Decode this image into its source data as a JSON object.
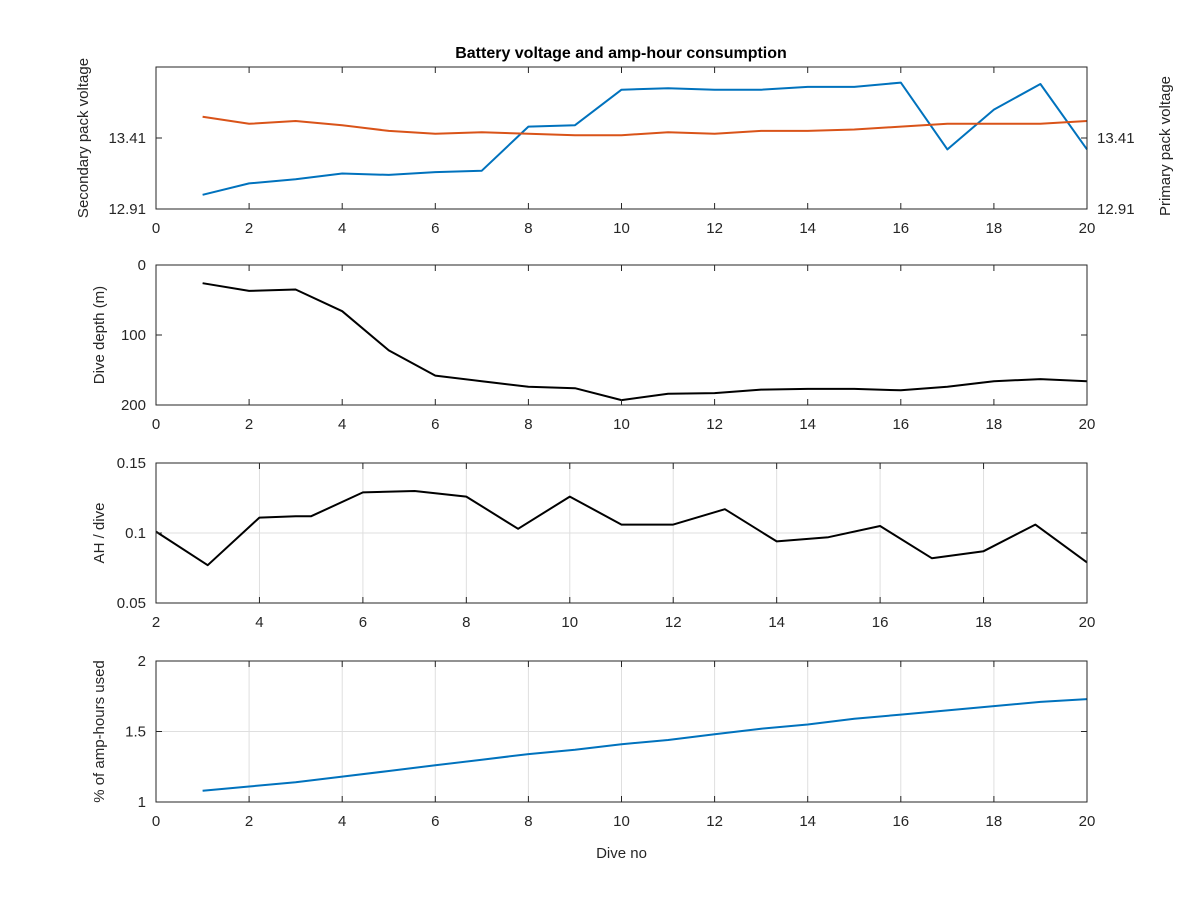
{
  "figure_title": "Battery voltage and amp-hour consumption",
  "colors": {
    "secondary": "#0072BD",
    "primary": "#D95319",
    "black": "#000000",
    "grid": "#DFDFDF",
    "axis": "#262626"
  },
  "chart_data": [
    {
      "type": "line",
      "title": "Battery voltage and amp-hour consumption",
      "xlabel": "",
      "xlim": [
        0,
        20
      ],
      "xticks": [
        0,
        2,
        4,
        6,
        8,
        10,
        12,
        14,
        16,
        18,
        20
      ],
      "grid": false,
      "ylabel_left": "Secondary pack voltage",
      "ylabel_right": "Primary pack voltage",
      "ylim_left": [
        12.91,
        13.91
      ],
      "ylim_right": [
        12.91,
        13.91
      ],
      "yticks_left": [
        12.91,
        13.41
      ],
      "yticks_right": [
        12.91,
        13.41
      ],
      "series": [
        {
          "name": "Secondary pack voltage",
          "axis": "left",
          "x": [
            1,
            2,
            3,
            4,
            5,
            6,
            7,
            8,
            9,
            10,
            11,
            12,
            13,
            14,
            15,
            16,
            17,
            18,
            19,
            20
          ],
          "values": [
            13.01,
            13.09,
            13.12,
            13.16,
            13.15,
            13.17,
            13.18,
            13.49,
            13.5,
            13.75,
            13.76,
            13.75,
            13.75,
            13.77,
            13.77,
            13.8,
            13.33,
            13.61,
            13.79,
            13.33
          ]
        },
        {
          "name": "Primary pack voltage",
          "axis": "right",
          "x": [
            1,
            2,
            3,
            4,
            5,
            6,
            7,
            8,
            9,
            10,
            11,
            12,
            13,
            14,
            15,
            16,
            17,
            18,
            19,
            20
          ],
          "values": [
            13.56,
            13.51,
            13.53,
            13.5,
            13.46,
            13.44,
            13.45,
            13.44,
            13.43,
            13.43,
            13.45,
            13.44,
            13.46,
            13.46,
            13.47,
            13.49,
            13.51,
            13.51,
            13.51,
            13.53
          ]
        }
      ]
    },
    {
      "type": "line",
      "title": "",
      "xlabel": "",
      "ylabel": "Dive depth (m)",
      "xlim": [
        0,
        20
      ],
      "xticks": [
        0,
        2,
        4,
        6,
        8,
        10,
        12,
        14,
        16,
        18,
        20
      ],
      "ylim": [
        0,
        200
      ],
      "yticks": [
        0,
        100,
        200
      ],
      "y_reversed": true,
      "grid": false,
      "series": [
        {
          "x": [
            1,
            2,
            3,
            4,
            5,
            6,
            7,
            8,
            9,
            10,
            11,
            12,
            13,
            14,
            15,
            16,
            17,
            18,
            19,
            20
          ],
          "values": [
            26,
            37,
            35,
            66,
            122,
            158,
            166,
            174,
            176,
            193,
            184,
            183,
            178,
            177,
            177,
            179,
            174,
            166,
            163,
            166
          ]
        }
      ]
    },
    {
      "type": "line",
      "title": "",
      "xlabel": "",
      "ylabel": "AH / dive",
      "xlim": [
        2,
        20
      ],
      "xticks": [
        2,
        4,
        6,
        8,
        10,
        12,
        14,
        16,
        18,
        20
      ],
      "ylim": [
        0.05,
        0.15
      ],
      "yticks": [
        0.05,
        0.1,
        0.15
      ],
      "grid": true,
      "series": [
        {
          "x": [
            2,
            3,
            4,
            4.7,
            5,
            6,
            7,
            8,
            9,
            10,
            11,
            12,
            13,
            14,
            15,
            16,
            17,
            18,
            19,
            20
          ],
          "values": [
            0.101,
            0.077,
            0.111,
            0.112,
            0.112,
            0.129,
            0.13,
            0.126,
            0.103,
            0.126,
            0.106,
            0.106,
            0.117,
            0.094,
            0.097,
            0.105,
            0.082,
            0.087,
            0.106,
            0.079
          ]
        }
      ]
    },
    {
      "type": "line",
      "title": "",
      "xlabel": "Dive no",
      "ylabel": "% of amp-hours used",
      "xlim": [
        0,
        20
      ],
      "xticks": [
        0,
        2,
        4,
        6,
        8,
        10,
        12,
        14,
        16,
        18,
        20
      ],
      "ylim": [
        1,
        2
      ],
      "yticks": [
        1,
        1.5,
        2
      ],
      "grid": true,
      "series": [
        {
          "x": [
            1,
            2,
            3,
            4,
            5,
            6,
            7,
            8,
            9,
            10,
            11,
            12,
            13,
            14,
            15,
            16,
            17,
            18,
            19,
            20
          ],
          "values": [
            1.08,
            1.11,
            1.14,
            1.18,
            1.22,
            1.26,
            1.3,
            1.34,
            1.37,
            1.41,
            1.44,
            1.48,
            1.52,
            1.55,
            1.59,
            1.62,
            1.65,
            1.68,
            1.71,
            1.73
          ]
        }
      ]
    }
  ]
}
